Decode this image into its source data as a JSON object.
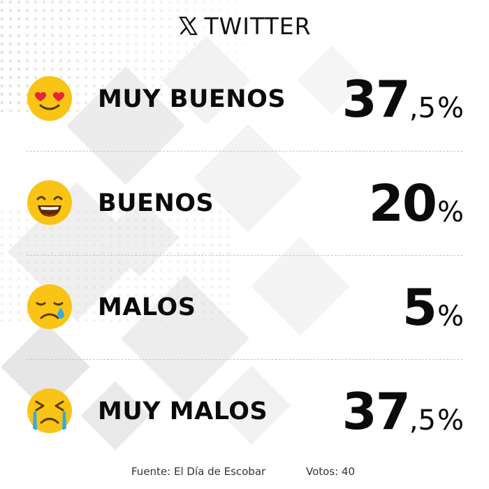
{
  "header": {
    "logo_icon": "x-logo-icon",
    "title": "TWITTER"
  },
  "colors": {
    "emoji_face": "#F9C416",
    "heart": "#E8223A",
    "tear": "#36A9E1",
    "text": "#0B0B0B",
    "divider": "#C7C7C7"
  },
  "chart_data": {
    "type": "table",
    "unit": "%",
    "rows": [
      {
        "label": "MUY BUENOS",
        "value": 37.5,
        "icon": "heart-eyes-emoji-icon",
        "display": {
          "int": "37",
          "dec": ",5",
          "pct": "%"
        }
      },
      {
        "label": "BUENOS",
        "value": 20,
        "icon": "grinning-emoji-icon",
        "display": {
          "int": "20",
          "dec": "",
          "pct": "%"
        }
      },
      {
        "label": "MALOS",
        "value": 5,
        "icon": "sad-tear-emoji-icon",
        "display": {
          "int": "5",
          "dec": "",
          "pct": "%"
        }
      },
      {
        "label": "MUY MALOS",
        "value": 37.5,
        "icon": "crying-emoji-icon",
        "display": {
          "int": "37",
          "dec": ",5",
          "pct": "%"
        }
      }
    ]
  },
  "footer": {
    "source": "Fuente: El Día de Escobar",
    "votes": "Votos: 40"
  }
}
